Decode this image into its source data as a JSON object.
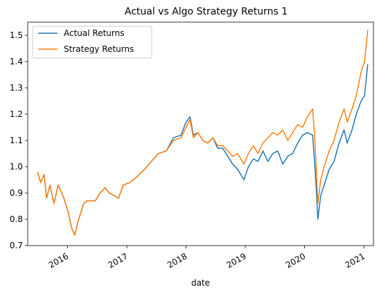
{
  "chart_data": {
    "type": "line",
    "title": "Actual vs Algo Strategy Returns 1",
    "xlabel": "date",
    "ylabel": "",
    "x_ticks": [
      "2016",
      "2017",
      "2018",
      "2019",
      "2020",
      "2021"
    ],
    "y_ticks": [
      "0.7",
      "0.8",
      "0.9",
      "1.0",
      "1.1",
      "1.2",
      "1.3",
      "1.4",
      "1.5"
    ],
    "xlim": [
      "2015-05-01",
      "2021-03-01"
    ],
    "ylim": [
      0.7,
      1.55
    ],
    "grid": false,
    "legend": "top-left",
    "series": [
      {
        "name": "Actual Returns",
        "color": "#1f77b4",
        "points": [
          [
            "2015-07-01",
            0.98
          ],
          [
            "2015-07-20",
            0.94
          ],
          [
            "2015-08-10",
            0.97
          ],
          [
            "2015-08-25",
            0.88
          ],
          [
            "2015-09-15",
            0.93
          ],
          [
            "2015-10-10",
            0.86
          ],
          [
            "2015-11-05",
            0.93
          ],
          [
            "2015-12-10",
            0.88
          ],
          [
            "2016-01-05",
            0.83
          ],
          [
            "2016-01-25",
            0.77
          ],
          [
            "2016-02-15",
            0.74
          ],
          [
            "2016-03-05",
            0.79
          ],
          [
            "2016-04-10",
            0.86
          ],
          [
            "2016-05-01",
            0.87
          ],
          [
            "2016-06-01",
            0.87
          ],
          [
            "2016-06-20",
            0.87
          ],
          [
            "2016-07-20",
            0.9
          ],
          [
            "2016-08-20",
            0.92
          ],
          [
            "2016-09-15",
            0.9
          ],
          [
            "2016-10-15",
            0.89
          ],
          [
            "2016-11-10",
            0.88
          ],
          [
            "2016-12-10",
            0.93
          ],
          [
            "2017-01-20",
            0.94
          ],
          [
            "2017-03-01",
            0.96
          ],
          [
            "2017-04-20",
            0.99
          ],
          [
            "2017-06-01",
            1.02
          ],
          [
            "2017-07-15",
            1.05
          ],
          [
            "2017-09-01",
            1.06
          ],
          [
            "2017-10-15",
            1.11
          ],
          [
            "2017-12-01",
            1.12
          ],
          [
            "2018-01-01",
            1.17
          ],
          [
            "2018-01-25",
            1.19
          ],
          [
            "2018-02-15",
            1.12
          ],
          [
            "2018-03-15",
            1.13
          ],
          [
            "2018-04-15",
            1.1
          ],
          [
            "2018-05-15",
            1.09
          ],
          [
            "2018-06-15",
            1.11
          ],
          [
            "2018-07-15",
            1.07
          ],
          [
            "2018-08-15",
            1.07
          ],
          [
            "2018-09-15",
            1.04
          ],
          [
            "2018-10-15",
            1.01
          ],
          [
            "2018-11-15",
            0.99
          ],
          [
            "2018-12-24",
            0.95
          ],
          [
            "2019-01-20",
            1.0
          ],
          [
            "2019-02-20",
            1.03
          ],
          [
            "2019-03-20",
            1.02
          ],
          [
            "2019-04-20",
            1.06
          ],
          [
            "2019-05-20",
            1.02
          ],
          [
            "2019-06-20",
            1.05
          ],
          [
            "2019-07-20",
            1.06
          ],
          [
            "2019-08-20",
            1.01
          ],
          [
            "2019-09-20",
            1.04
          ],
          [
            "2019-10-20",
            1.05
          ],
          [
            "2019-11-20",
            1.09
          ],
          [
            "2019-12-20",
            1.12
          ],
          [
            "2020-01-20",
            1.13
          ],
          [
            "2020-02-20",
            1.12
          ],
          [
            "2020-03-05",
            1.0
          ],
          [
            "2020-03-15",
            0.9
          ],
          [
            "2020-03-23",
            0.8
          ],
          [
            "2020-04-10",
            0.89
          ],
          [
            "2020-05-01",
            0.93
          ],
          [
            "2020-06-01",
            0.99
          ],
          [
            "2020-07-01",
            1.02
          ],
          [
            "2020-08-01",
            1.09
          ],
          [
            "2020-09-01",
            1.14
          ],
          [
            "2020-09-20",
            1.09
          ],
          [
            "2020-10-20",
            1.14
          ],
          [
            "2020-11-15",
            1.2
          ],
          [
            "2020-12-15",
            1.25
          ],
          [
            "2021-01-05",
            1.27
          ],
          [
            "2021-01-25",
            1.39
          ]
        ]
      },
      {
        "name": "Strategy Returns",
        "color": "#ff7f0e",
        "points": [
          [
            "2015-07-01",
            0.98
          ],
          [
            "2015-07-20",
            0.94
          ],
          [
            "2015-08-10",
            0.97
          ],
          [
            "2015-08-25",
            0.88
          ],
          [
            "2015-09-15",
            0.93
          ],
          [
            "2015-10-10",
            0.86
          ],
          [
            "2015-11-05",
            0.93
          ],
          [
            "2015-12-10",
            0.88
          ],
          [
            "2016-01-05",
            0.83
          ],
          [
            "2016-01-25",
            0.77
          ],
          [
            "2016-02-15",
            0.74
          ],
          [
            "2016-03-05",
            0.79
          ],
          [
            "2016-04-10",
            0.86
          ],
          [
            "2016-05-01",
            0.87
          ],
          [
            "2016-06-01",
            0.87
          ],
          [
            "2016-06-20",
            0.87
          ],
          [
            "2016-07-20",
            0.9
          ],
          [
            "2016-08-20",
            0.92
          ],
          [
            "2016-09-15",
            0.9
          ],
          [
            "2016-10-15",
            0.89
          ],
          [
            "2016-11-10",
            0.88
          ],
          [
            "2016-12-10",
            0.93
          ],
          [
            "2017-01-20",
            0.94
          ],
          [
            "2017-03-01",
            0.96
          ],
          [
            "2017-04-20",
            0.99
          ],
          [
            "2017-06-01",
            1.02
          ],
          [
            "2017-07-15",
            1.05
          ],
          [
            "2017-09-01",
            1.06
          ],
          [
            "2017-10-15",
            1.1
          ],
          [
            "2017-12-01",
            1.11
          ],
          [
            "2018-01-01",
            1.15
          ],
          [
            "2018-01-25",
            1.18
          ],
          [
            "2018-02-15",
            1.11
          ],
          [
            "2018-03-15",
            1.13
          ],
          [
            "2018-04-15",
            1.1
          ],
          [
            "2018-05-15",
            1.09
          ],
          [
            "2018-06-15",
            1.11
          ],
          [
            "2018-07-15",
            1.08
          ],
          [
            "2018-08-15",
            1.08
          ],
          [
            "2018-09-15",
            1.06
          ],
          [
            "2018-10-15",
            1.04
          ],
          [
            "2018-11-15",
            1.05
          ],
          [
            "2018-12-24",
            1.01
          ],
          [
            "2019-01-20",
            1.05
          ],
          [
            "2019-02-20",
            1.08
          ],
          [
            "2019-03-20",
            1.05
          ],
          [
            "2019-04-20",
            1.09
          ],
          [
            "2019-05-20",
            1.11
          ],
          [
            "2019-06-20",
            1.13
          ],
          [
            "2019-07-20",
            1.12
          ],
          [
            "2019-08-20",
            1.14
          ],
          [
            "2019-09-20",
            1.1
          ],
          [
            "2019-10-20",
            1.13
          ],
          [
            "2019-11-20",
            1.16
          ],
          [
            "2019-12-20",
            1.15
          ],
          [
            "2020-01-20",
            1.19
          ],
          [
            "2020-02-20",
            1.22
          ],
          [
            "2020-03-05",
            1.1
          ],
          [
            "2020-03-15",
            0.97
          ],
          [
            "2020-03-23",
            0.86
          ],
          [
            "2020-04-10",
            0.95
          ],
          [
            "2020-05-01",
            1.0
          ],
          [
            "2020-06-01",
            1.06
          ],
          [
            "2020-07-01",
            1.1
          ],
          [
            "2020-08-01",
            1.17
          ],
          [
            "2020-09-01",
            1.22
          ],
          [
            "2020-09-20",
            1.17
          ],
          [
            "2020-10-20",
            1.22
          ],
          [
            "2020-11-15",
            1.27
          ],
          [
            "2020-12-15",
            1.36
          ],
          [
            "2021-01-05",
            1.4
          ],
          [
            "2021-01-25",
            1.52
          ]
        ]
      }
    ]
  }
}
